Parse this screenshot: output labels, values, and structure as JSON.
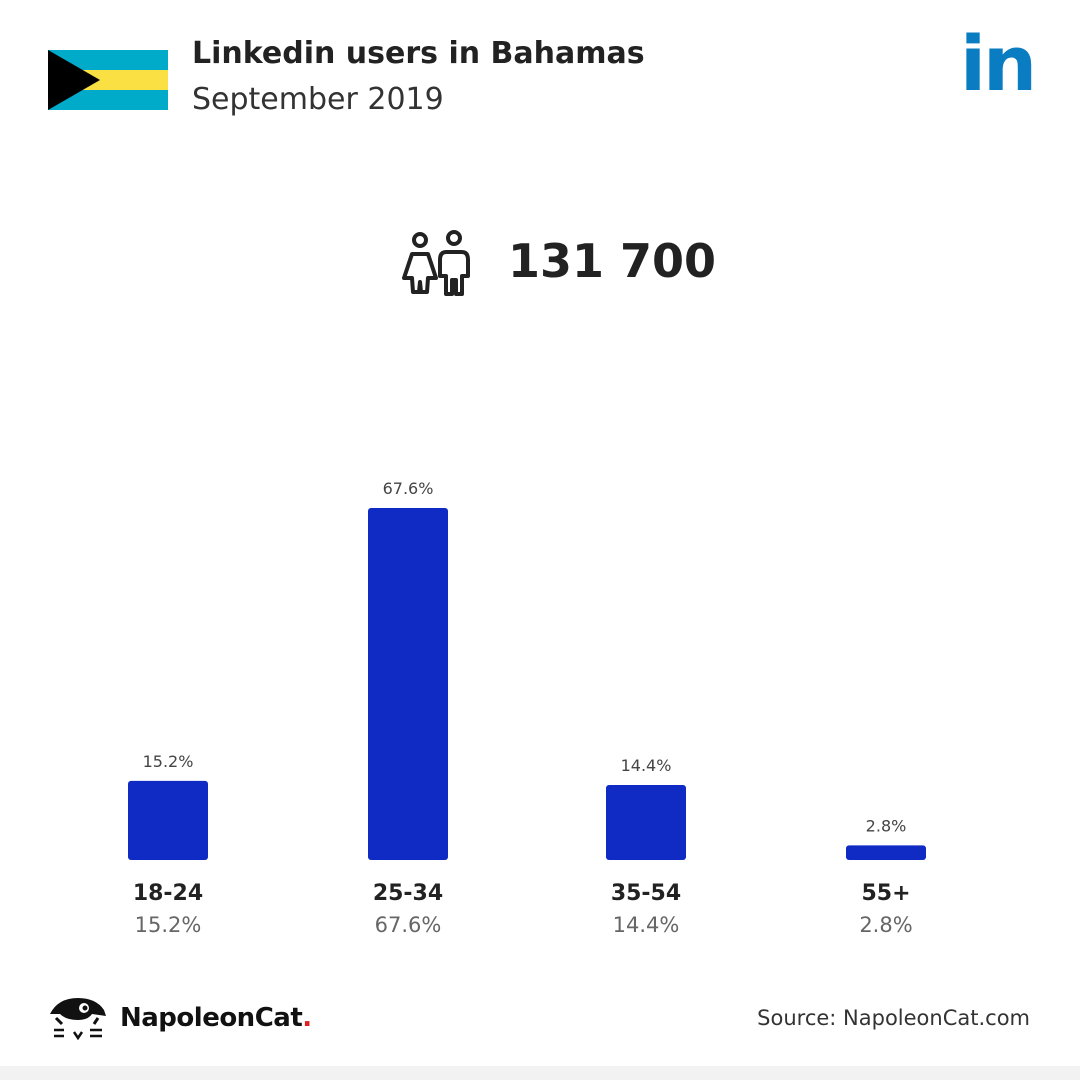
{
  "header": {
    "title": "Linkedin users in Bahamas",
    "subtitle": "September 2019",
    "logo_text": "in"
  },
  "flag": {
    "country": "Bahamas",
    "colors": {
      "aquamarine": "#00abc9",
      "gold": "#fae042",
      "black": "#000000"
    }
  },
  "summary": {
    "icon": "users-icon",
    "total_users": "131 700"
  },
  "chart_data": {
    "type": "bar",
    "categories": [
      "18-24",
      "25-34",
      "35-54",
      "55+"
    ],
    "values": [
      15.2,
      67.6,
      14.4,
      2.8
    ],
    "data_labels": [
      "15.2%",
      "67.6%",
      "14.4%",
      "2.8%"
    ],
    "category_percent_labels": [
      "15.2%",
      "67.6%",
      "14.4%",
      "2.8%"
    ],
    "title": "",
    "xlabel": "",
    "ylabel": "",
    "grid": false,
    "bar_color": "#0f2bc4"
  },
  "footer": {
    "brand_name": "NapoleonCat",
    "brand_dot": ".",
    "source": "Source: NapoleonCat.com"
  },
  "colors": {
    "linkedin_blue": "#0a7cc1",
    "bar_blue": "#0f2bc4",
    "brand_dot_red": "#e02020"
  }
}
